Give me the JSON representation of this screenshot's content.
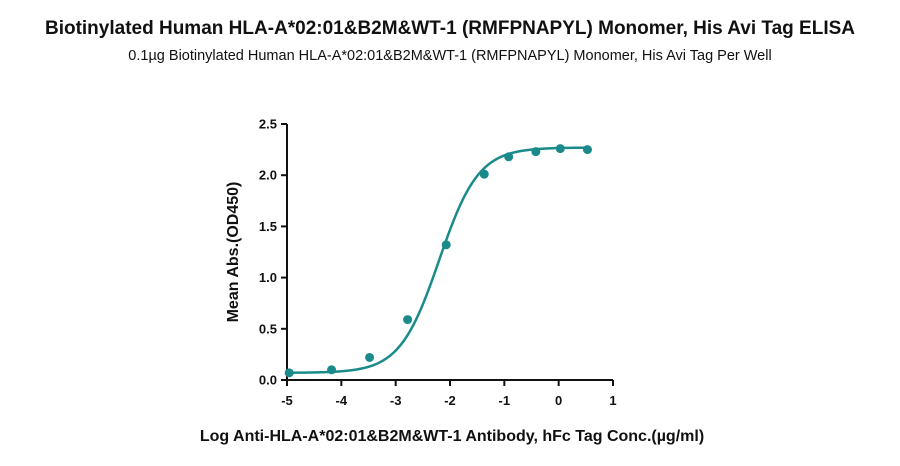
{
  "chart_data": {
    "type": "scatter",
    "title": "Biotinylated Human HLA-A*02:01&B2M&WT-1 (RMFPNAPYL) Monomer, His Avi Tag ELISA",
    "subtitle": "0.1µg Biotinylated Human HLA-A*02:01&B2M&WT-1 (RMFPNAPYL) Monomer, His Avi Tag Per Well",
    "xlabel": "Log Anti-HLA-A*02:01&B2M&WT-1 Antibody, hFc Tag Conc.(µg/ml)",
    "ylabel": "Mean Abs.(OD450)",
    "xlim": [
      -5,
      1
    ],
    "ylim": [
      0,
      2.5
    ],
    "xticks": [
      "-5",
      "-4",
      "-3",
      "-2",
      "-1",
      "0",
      "1"
    ],
    "yticks": [
      "0.0",
      "0.5",
      "1.0",
      "1.5",
      "2.0",
      "2.5"
    ],
    "grid": false,
    "fit": "4PL sigmoid curve",
    "series_color": "#1a8a8a",
    "points": [
      {
        "x": -4.96,
        "y": 0.07
      },
      {
        "x": -4.18,
        "y": 0.1
      },
      {
        "x": -3.48,
        "y": 0.22
      },
      {
        "x": -2.78,
        "y": 0.59
      },
      {
        "x": -2.07,
        "y": 1.32
      },
      {
        "x": -1.37,
        "y": 2.01
      },
      {
        "x": -0.92,
        "y": 2.18
      },
      {
        "x": -0.42,
        "y": 2.23
      },
      {
        "x": 0.03,
        "y": 2.26
      },
      {
        "x": 0.53,
        "y": 2.25
      }
    ]
  }
}
